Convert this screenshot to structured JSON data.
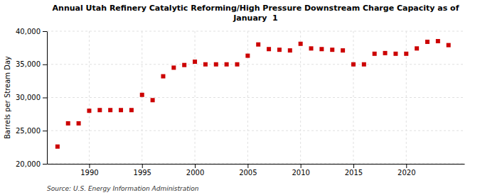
{
  "chart_data": {
    "type": "scatter",
    "title": "Annual Utah Refinery Catalytic Reforming/High Pressure Downstream Charge Capacity as of\nJanuary  1",
    "ylabel": "Barrels per Stream Day",
    "source": "Source: U.S. Energy Information Administration",
    "color": "#cc0000",
    "marker": "square",
    "x": [
      1987,
      1988,
      1989,
      1990,
      1991,
      1992,
      1993,
      1994,
      1995,
      1996,
      1997,
      1998,
      1999,
      2000,
      2001,
      2002,
      2003,
      2004,
      2005,
      2006,
      2007,
      2008,
      2009,
      2010,
      2011,
      2012,
      2013,
      2014,
      2015,
      2016,
      2017,
      2018,
      2019,
      2020,
      2021,
      2022,
      2023,
      2024
    ],
    "values": [
      22600,
      26100,
      26100,
      28000,
      28100,
      28100,
      28100,
      28100,
      30400,
      29600,
      33200,
      34500,
      34900,
      35400,
      35000,
      35000,
      35000,
      35000,
      36300,
      38000,
      37300,
      37200,
      37100,
      38100,
      37400,
      37300,
      37200,
      37100,
      35000,
      35000,
      36600,
      36700,
      36600,
      36600,
      37400,
      38400,
      38500,
      37900
    ],
    "xlim": [
      1986,
      2025.5
    ],
    "xticks": [
      1990,
      1995,
      2000,
      2005,
      2010,
      2015,
      2020
    ],
    "ylim": [
      20000,
      40000
    ],
    "yticks": [
      {
        "value": 20000,
        "label": "20,000"
      },
      {
        "value": 25000,
        "label": "25,000"
      },
      {
        "value": 30000,
        "label": "30,000"
      },
      {
        "value": 35000,
        "label": "35,000"
      },
      {
        "value": 40000,
        "label": "40,000"
      }
    ],
    "grid": true
  }
}
